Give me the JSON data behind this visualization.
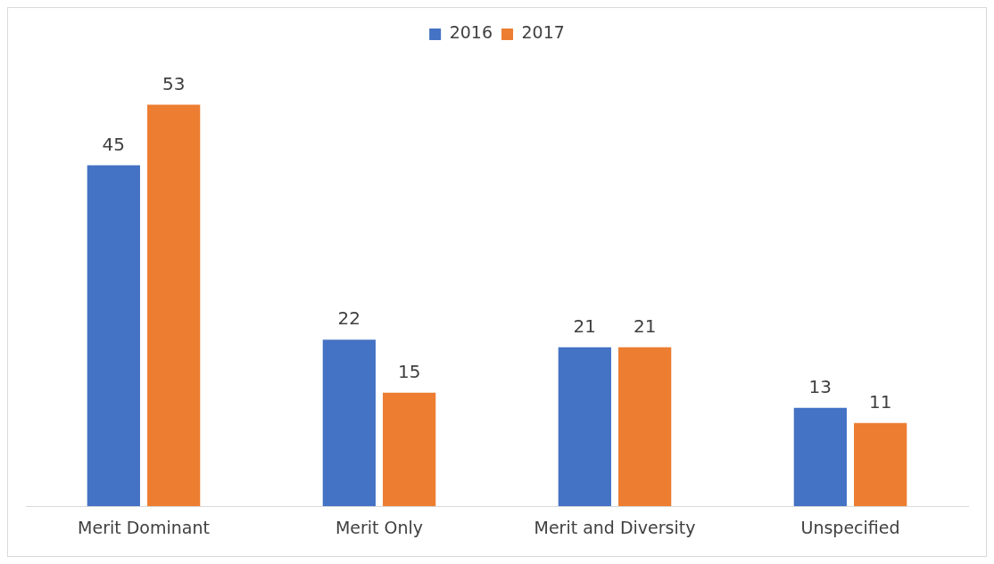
{
  "chart_data": {
    "type": "bar",
    "categories": [
      "Merit Dominant",
      "Merit Only",
      "Merit and Diversity",
      "Unspecified"
    ],
    "series": [
      {
        "name": "2016",
        "color": "#4472c4",
        "values": [
          45,
          22,
          21,
          13
        ]
      },
      {
        "name": "2017",
        "color": "#ed7d31",
        "values": [
          53,
          15,
          21,
          11
        ]
      }
    ],
    "data_labels": true,
    "legend": "top",
    "grid": false,
    "tick_labels": "x"
  }
}
